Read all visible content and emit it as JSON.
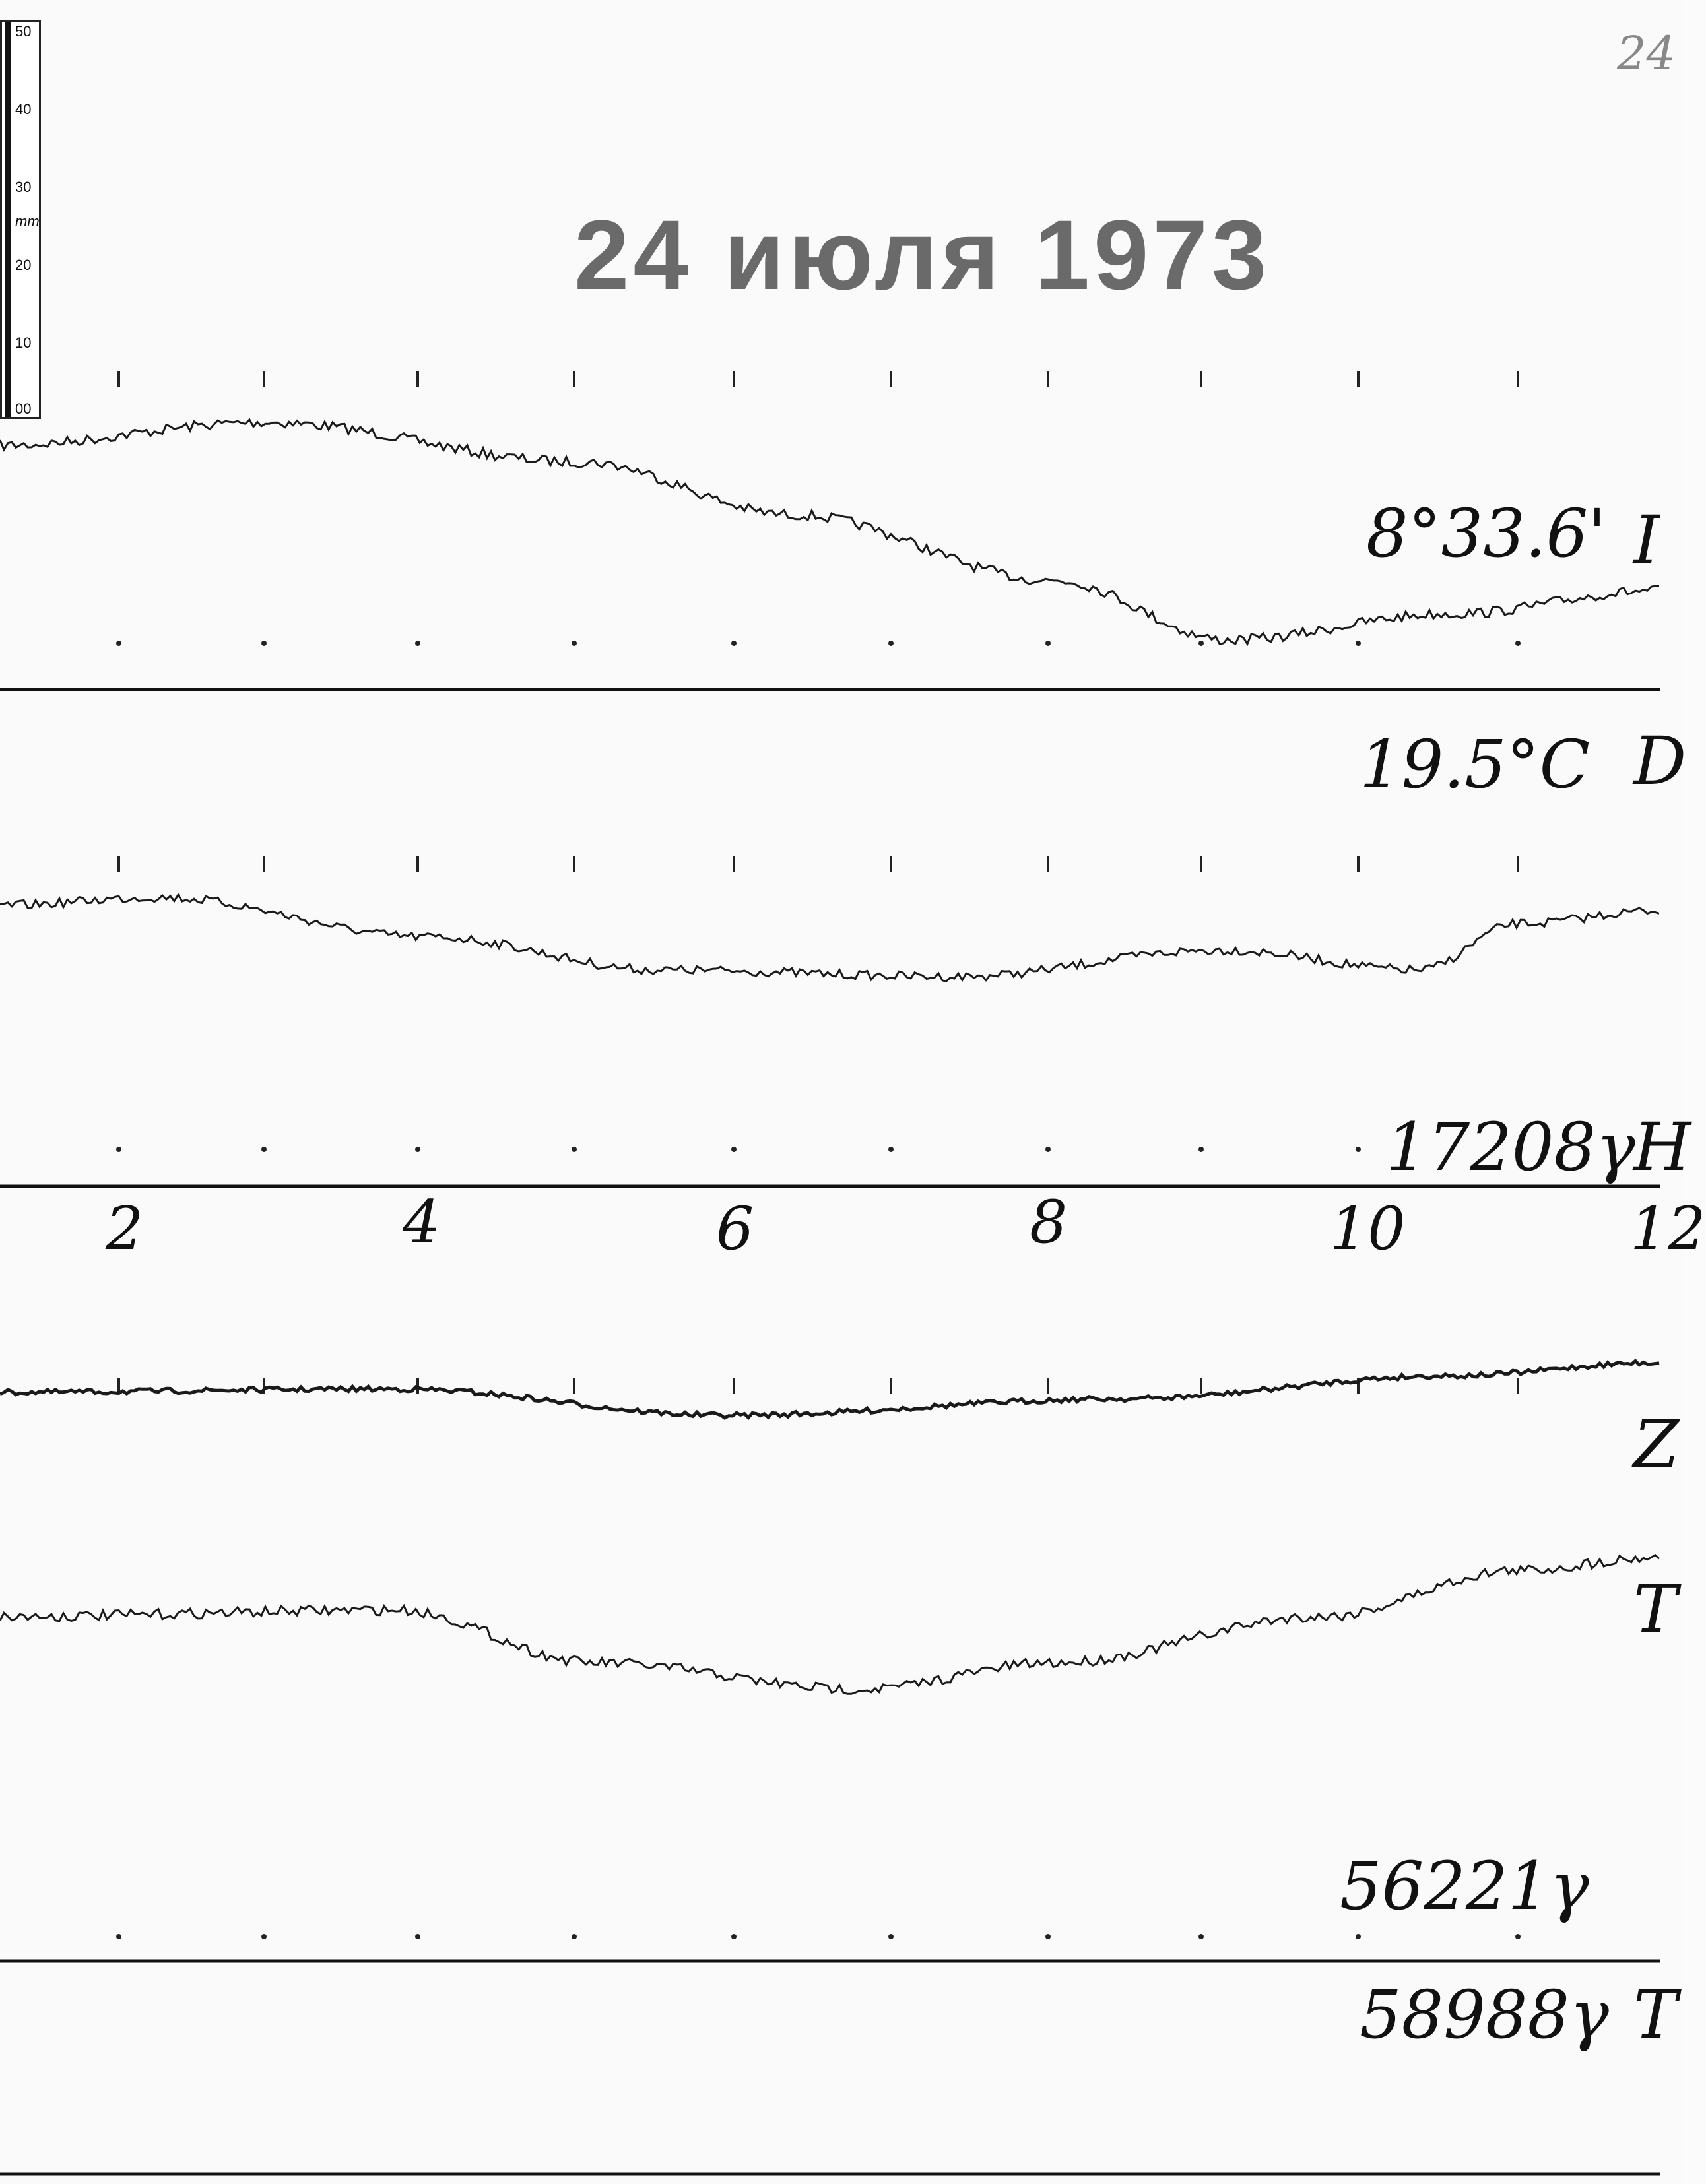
{
  "corner_mark": "24",
  "title": "24 июля 1973",
  "ruler": {
    "unit": "mm",
    "labels": [
      "50",
      "40",
      "30",
      "20",
      "10",
      "00"
    ]
  },
  "labels": {
    "d_baseline": "8°33.6'",
    "temperature": "19.5°C",
    "h_baseline": "17208γ",
    "z_baseline": "56221γ",
    "t_baseline": "58988γ"
  },
  "edge_letters": [
    "I",
    "D",
    "H",
    "Z",
    "T",
    "T"
  ],
  "hours": [
    "2",
    "4",
    "6",
    "8",
    "10",
    "12"
  ]
}
